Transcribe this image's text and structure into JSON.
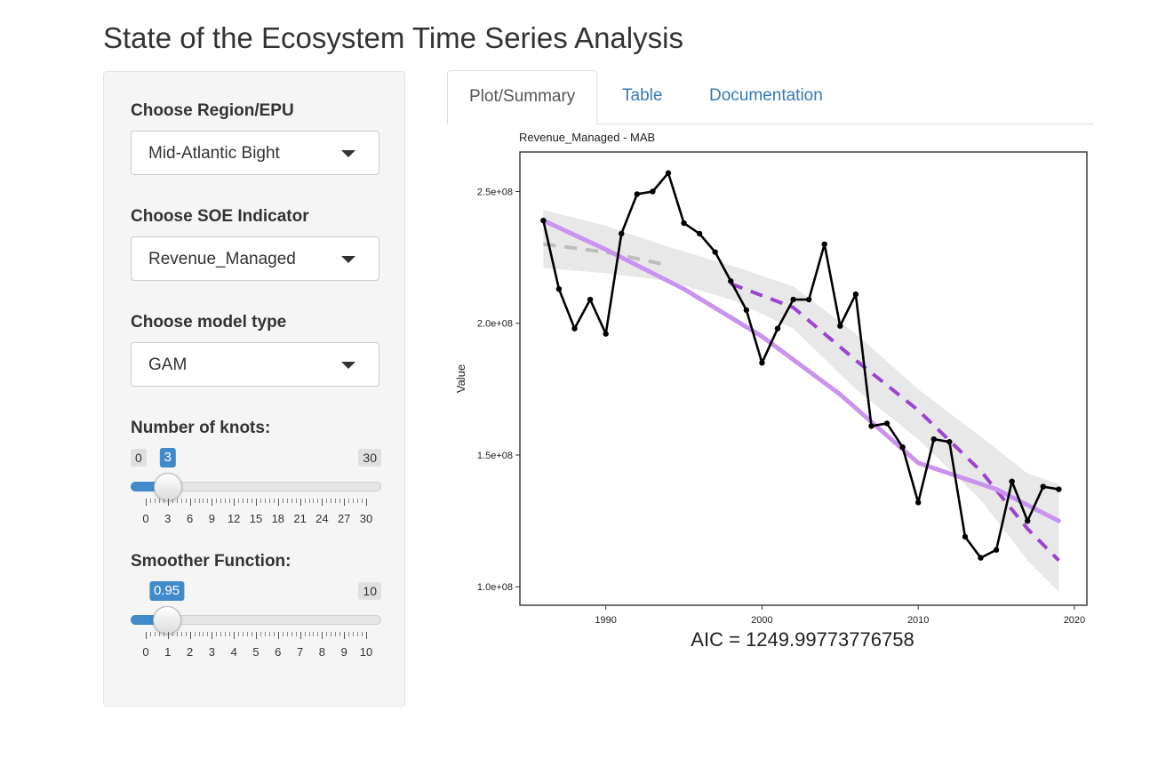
{
  "page": {
    "title": "State of the Ecosystem Time Series Analysis"
  },
  "sidebar": {
    "region": {
      "label": "Choose Region/EPU",
      "value": "Mid-Atlantic Bight"
    },
    "indicator": {
      "label": "Choose SOE Indicator",
      "value": "Revenue_Managed"
    },
    "model": {
      "label": "Choose model type",
      "value": "GAM"
    },
    "knots": {
      "label": "Number of knots:",
      "min": "0",
      "max": "30",
      "value": "3",
      "ticks": [
        "0",
        "3",
        "6",
        "9",
        "12",
        "15",
        "18",
        "21",
        "24",
        "27",
        "30"
      ]
    },
    "smoother": {
      "label": "Smoother Function:",
      "min": "0",
      "max": "10",
      "value": "0.95",
      "ticks": [
        "0",
        "1",
        "2",
        "3",
        "4",
        "5",
        "6",
        "7",
        "8",
        "9",
        "10"
      ]
    }
  },
  "tabs": [
    {
      "label": "Plot/Summary",
      "active": true
    },
    {
      "label": "Table",
      "active": false
    },
    {
      "label": "Documentation",
      "active": false
    }
  ],
  "colors": {
    "accent": "#428bca",
    "link": "#337ab7",
    "series": "#000000",
    "trend": "#c994ee",
    "gam_dashed": "#9a45d1",
    "ribbon": "#e6e6e6"
  },
  "chart_data": {
    "type": "line",
    "title": "Revenue_Managed - MAB",
    "xlabel": "",
    "ylabel": "Value",
    "xlim": [
      1984.5,
      2020.8
    ],
    "ylim": [
      93000000.0,
      265000000.0
    ],
    "xticks": [
      {
        "v": 1990,
        "label": "1990"
      },
      {
        "v": 2000,
        "label": "2000"
      },
      {
        "v": 2010,
        "label": "2010"
      },
      {
        "v": 2020,
        "label": "2020"
      }
    ],
    "yticks": [
      {
        "v": 100000000.0,
        "label": "1.0e+08"
      },
      {
        "v": 150000000.0,
        "label": "1.5e+08"
      },
      {
        "v": 200000000.0,
        "label": "2.0e+08"
      },
      {
        "v": 250000000.0,
        "label": "2.5e+08"
      }
    ],
    "grid": false,
    "series": [
      {
        "x": [
          1986,
          1987,
          1988,
          1989,
          1990,
          1991,
          1992,
          1993,
          1994,
          1995,
          1996,
          1997,
          1998,
          1999,
          2000,
          2001,
          2002,
          2003,
          2004,
          2005,
          2006,
          2007,
          2008,
          2009,
          2010,
          2011,
          2012,
          2013,
          2014,
          2015,
          2016,
          2017,
          2018,
          2019
        ],
        "values": [
          239000000.0,
          213000000.0,
          198000000.0,
          209000000.0,
          196000000.0,
          234000000.0,
          249000000.0,
          250000000.0,
          257000000.0,
          238000000.0,
          234000000.0,
          227000000.0,
          216000000.0,
          205000000.0,
          185000000.0,
          198000000.0,
          209000000.0,
          209000000.0,
          230000000.0,
          199000000.0,
          211000000.0,
          161000000.0,
          162000000.0,
          153000000.0,
          132000000.0,
          156000000.0,
          155000000.0,
          119000000.0,
          111000000.0,
          114000000.0,
          140000000.0,
          125000000.0,
          138000000.0,
          137000000.0
        ]
      }
    ],
    "trend": {
      "x": [
        1986,
        1990,
        1995,
        2000,
        2005,
        2010,
        2015,
        2019
      ],
      "values": [
        239000000.0,
        228000000.0,
        213000000.0,
        195000000.0,
        173000000.0,
        147000000.0,
        137000000.0,
        125000000.0
      ]
    },
    "gam_fit": {
      "x": [
        1986,
        1990,
        1994,
        1998,
        2002,
        2006,
        2010,
        2014,
        2017,
        2019
      ],
      "values": [
        230000000.0,
        227000000.0,
        222000000.0,
        215000000.0,
        206000000.0,
        186000000.0,
        167000000.0,
        144000000.0,
        122000000.0,
        110000000.0
      ],
      "upper": [
        243000000.0,
        237000000.0,
        229000000.0,
        222000000.0,
        214000000.0,
        196000000.0,
        175000000.0,
        157000000.0,
        143000000.0,
        139000000.0
      ],
      "lower": [
        221000000.0,
        219000000.0,
        216000000.0,
        209000000.0,
        198000000.0,
        175000000.0,
        156000000.0,
        133000000.0,
        110000000.0,
        98000000.0
      ],
      "significant_from": 1995
    },
    "annotation": "AIC =  1249.99773776758"
  }
}
